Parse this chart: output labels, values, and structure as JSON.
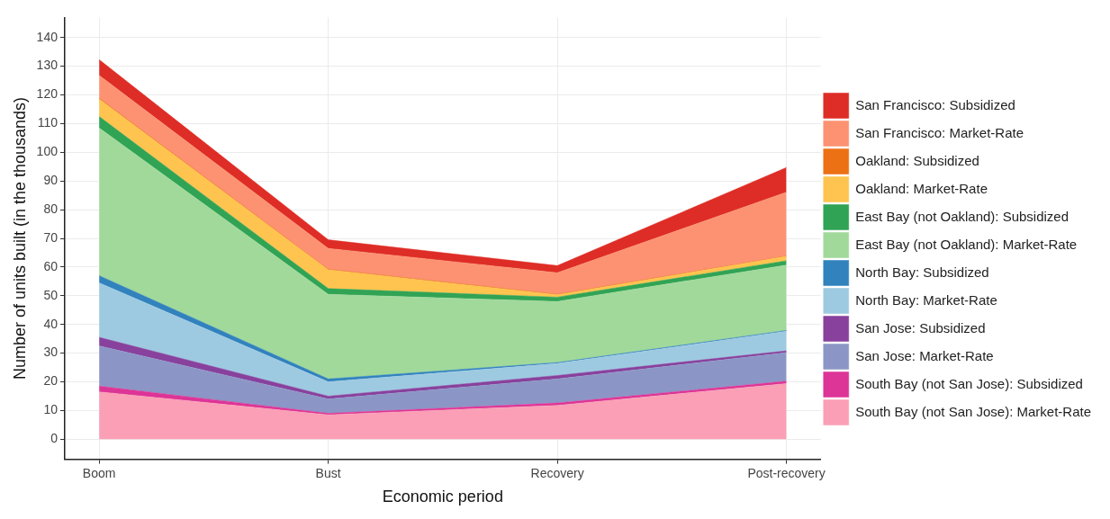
{
  "chart_data": {
    "type": "area",
    "stacked": true,
    "xlabel": "Economic period",
    "ylabel": "Number of units built (in the thousands)",
    "categories": [
      "Boom",
      "Bust",
      "Recovery",
      "Post-recovery"
    ],
    "ylim": [
      -7,
      147
    ],
    "yticks": [
      0,
      10,
      20,
      30,
      40,
      50,
      60,
      70,
      80,
      90,
      100,
      110,
      120,
      130,
      140
    ],
    "grid": true,
    "legend": "right",
    "series": [
      {
        "name": "South Bay (not San Jose): Market-Rate",
        "color": "#fa9fb5",
        "values": [
          16.5,
          8.5,
          11.8,
          19.4
        ]
      },
      {
        "name": "South Bay (not San Jose): Subsidized",
        "color": "#dd3497",
        "values": [
          2,
          0.5,
          0.8,
          0.8
        ]
      },
      {
        "name": "San Jose: Market-Rate",
        "color": "#8c96c6",
        "values": [
          14,
          5,
          8.4,
          10
        ]
      },
      {
        "name": "San Jose: Subsidized",
        "color": "#88419d",
        "values": [
          3,
          1,
          1.2,
          0.6
        ]
      },
      {
        "name": "North Bay: Market-Rate",
        "color": "#9ecae1",
        "values": [
          19,
          5,
          4.2,
          6.8
        ]
      },
      {
        "name": "North Bay: Subsidized",
        "color": "#3182bd",
        "values": [
          2.5,
          1,
          0.3,
          0.3
        ]
      },
      {
        "name": "East Bay (not Oakland): Market-Rate",
        "color": "#a1d99b",
        "values": [
          51.5,
          29.5,
          21.3,
          22.8
        ]
      },
      {
        "name": "East Bay (not Oakland): Subsidized",
        "color": "#31a354",
        "values": [
          4,
          2,
          1.5,
          1.5
        ]
      },
      {
        "name": "Oakland: Market-Rate",
        "color": "#fec44f",
        "values": [
          6,
          6.5,
          0.8,
          1.5
        ]
      },
      {
        "name": "Oakland: Subsidized",
        "color": "#ec7014",
        "values": [
          0.3,
          0.2,
          0.2,
          0.1
        ]
      },
      {
        "name": "San Francisco: Market-Rate",
        "color": "#fc9272",
        "values": [
          8,
          7.3,
          7.5,
          22.3
        ]
      },
      {
        "name": "San Francisco: Subsidized",
        "color": "#de2d26",
        "values": [
          5.5,
          3,
          2.5,
          8.6
        ]
      }
    ]
  }
}
